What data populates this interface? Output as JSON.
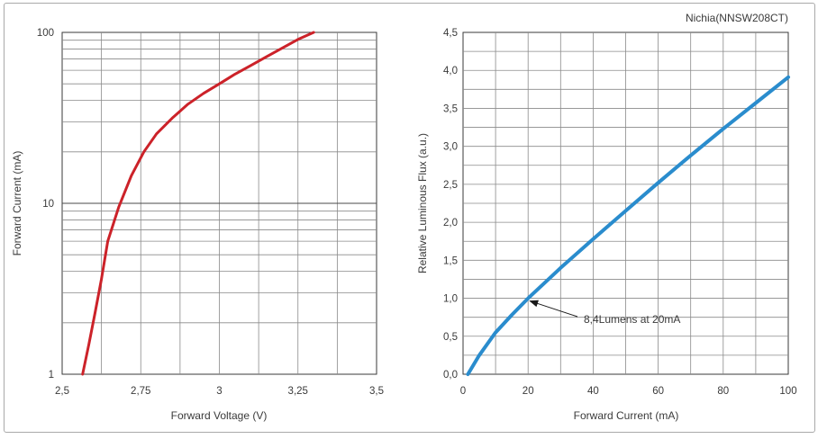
{
  "chart_data": [
    {
      "type": "line",
      "title": "",
      "xlabel": "Forward Voltage (V)",
      "ylabel": "Forward Current (mA)",
      "xlim": [
        2.5,
        3.5
      ],
      "ylim": [
        1,
        100
      ],
      "yscale": "log",
      "grid": true,
      "x_ticks": [
        "2,5",
        "2,75",
        "3",
        "3,25",
        "3,5"
      ],
      "x_tick_values": [
        2.5,
        2.75,
        3.0,
        3.25,
        3.5
      ],
      "y_ticks": [
        "1",
        "10",
        "100"
      ],
      "y_tick_values": [
        1,
        10,
        100
      ],
      "line_color": "#cc2229",
      "series": [
        {
          "x": [
            2.565,
            2.585,
            2.605,
            2.625,
            2.645,
            2.68,
            2.72,
            2.76,
            2.8,
            2.85,
            2.9,
            2.95,
            3.0,
            3.05,
            3.1,
            3.15,
            3.2,
            3.25,
            3.3
          ],
          "values": [
            1.0,
            1.5,
            2.3,
            3.6,
            6.0,
            9.5,
            14.5,
            20.0,
            25.5,
            31.5,
            38.0,
            44.0,
            50.0,
            57.0,
            64.0,
            72.0,
            81.0,
            91.0,
            100.0
          ]
        }
      ]
    },
    {
      "type": "line",
      "title": "Nichia(NNSW208CT)",
      "xlabel": "Forward Current (mA)",
      "ylabel": "Relative Luminous Flux (a.u.)",
      "xlim": [
        0,
        100
      ],
      "ylim": [
        0,
        4.5
      ],
      "grid": true,
      "x_ticks": [
        "0",
        "20",
        "40",
        "60",
        "80",
        "100"
      ],
      "x_tick_values": [
        0,
        20,
        40,
        60,
        80,
        100
      ],
      "y_ticks": [
        "0,0",
        "0,5",
        "1,0",
        "1,5",
        "2,0",
        "2,5",
        "3,0",
        "3,5",
        "4,0",
        "4,5"
      ],
      "y_tick_values": [
        0,
        0.5,
        1.0,
        1.5,
        2.0,
        2.5,
        3.0,
        3.5,
        4.0,
        4.5
      ],
      "line_color": "#2a8ccd",
      "series": [
        {
          "x": [
            1.5,
            5,
            10,
            15,
            20,
            25,
            30,
            40,
            50,
            60,
            70,
            80,
            90,
            100
          ],
          "values": [
            0.0,
            0.25,
            0.55,
            0.78,
            1.0,
            1.2,
            1.4,
            1.78,
            2.15,
            2.52,
            2.88,
            3.23,
            3.57,
            3.91
          ]
        }
      ],
      "annotation": {
        "text": "8,4Lumens at 20mA",
        "x": 20,
        "y": 1.0
      }
    }
  ]
}
